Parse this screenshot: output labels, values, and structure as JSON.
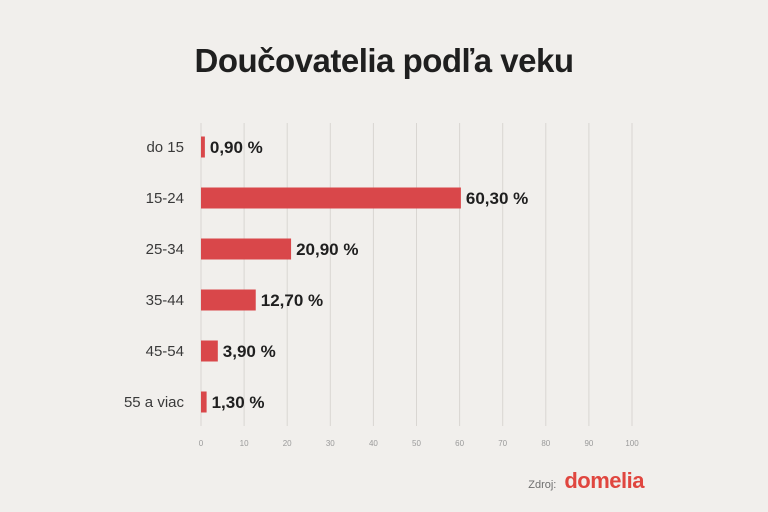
{
  "title": "Doučovatelia podľa veku",
  "source": {
    "label": "Zdroj:",
    "logo": "domelia"
  },
  "colors": {
    "bar": "#d9474a",
    "background": "#f1efec",
    "grid": "#d9d6d2"
  },
  "chart_data": {
    "type": "bar",
    "orientation": "horizontal",
    "title": "Doučovatelia podľa veku",
    "categories": [
      "do 15",
      "15-24",
      "25-34",
      "35-44",
      "45-54",
      "55 a viac"
    ],
    "values": [
      0.9,
      60.3,
      20.9,
      12.7,
      3.9,
      1.3
    ],
    "value_labels": [
      "0,90 %",
      "60,30 %",
      "20,90 %",
      "12,70 %",
      "3,90 %",
      "1,30 %"
    ],
    "xlim": [
      0,
      100
    ],
    "xticks": [
      0,
      10,
      20,
      30,
      40,
      50,
      60,
      70,
      80,
      90,
      100
    ],
    "grid": true,
    "xlabel": "",
    "ylabel": ""
  }
}
